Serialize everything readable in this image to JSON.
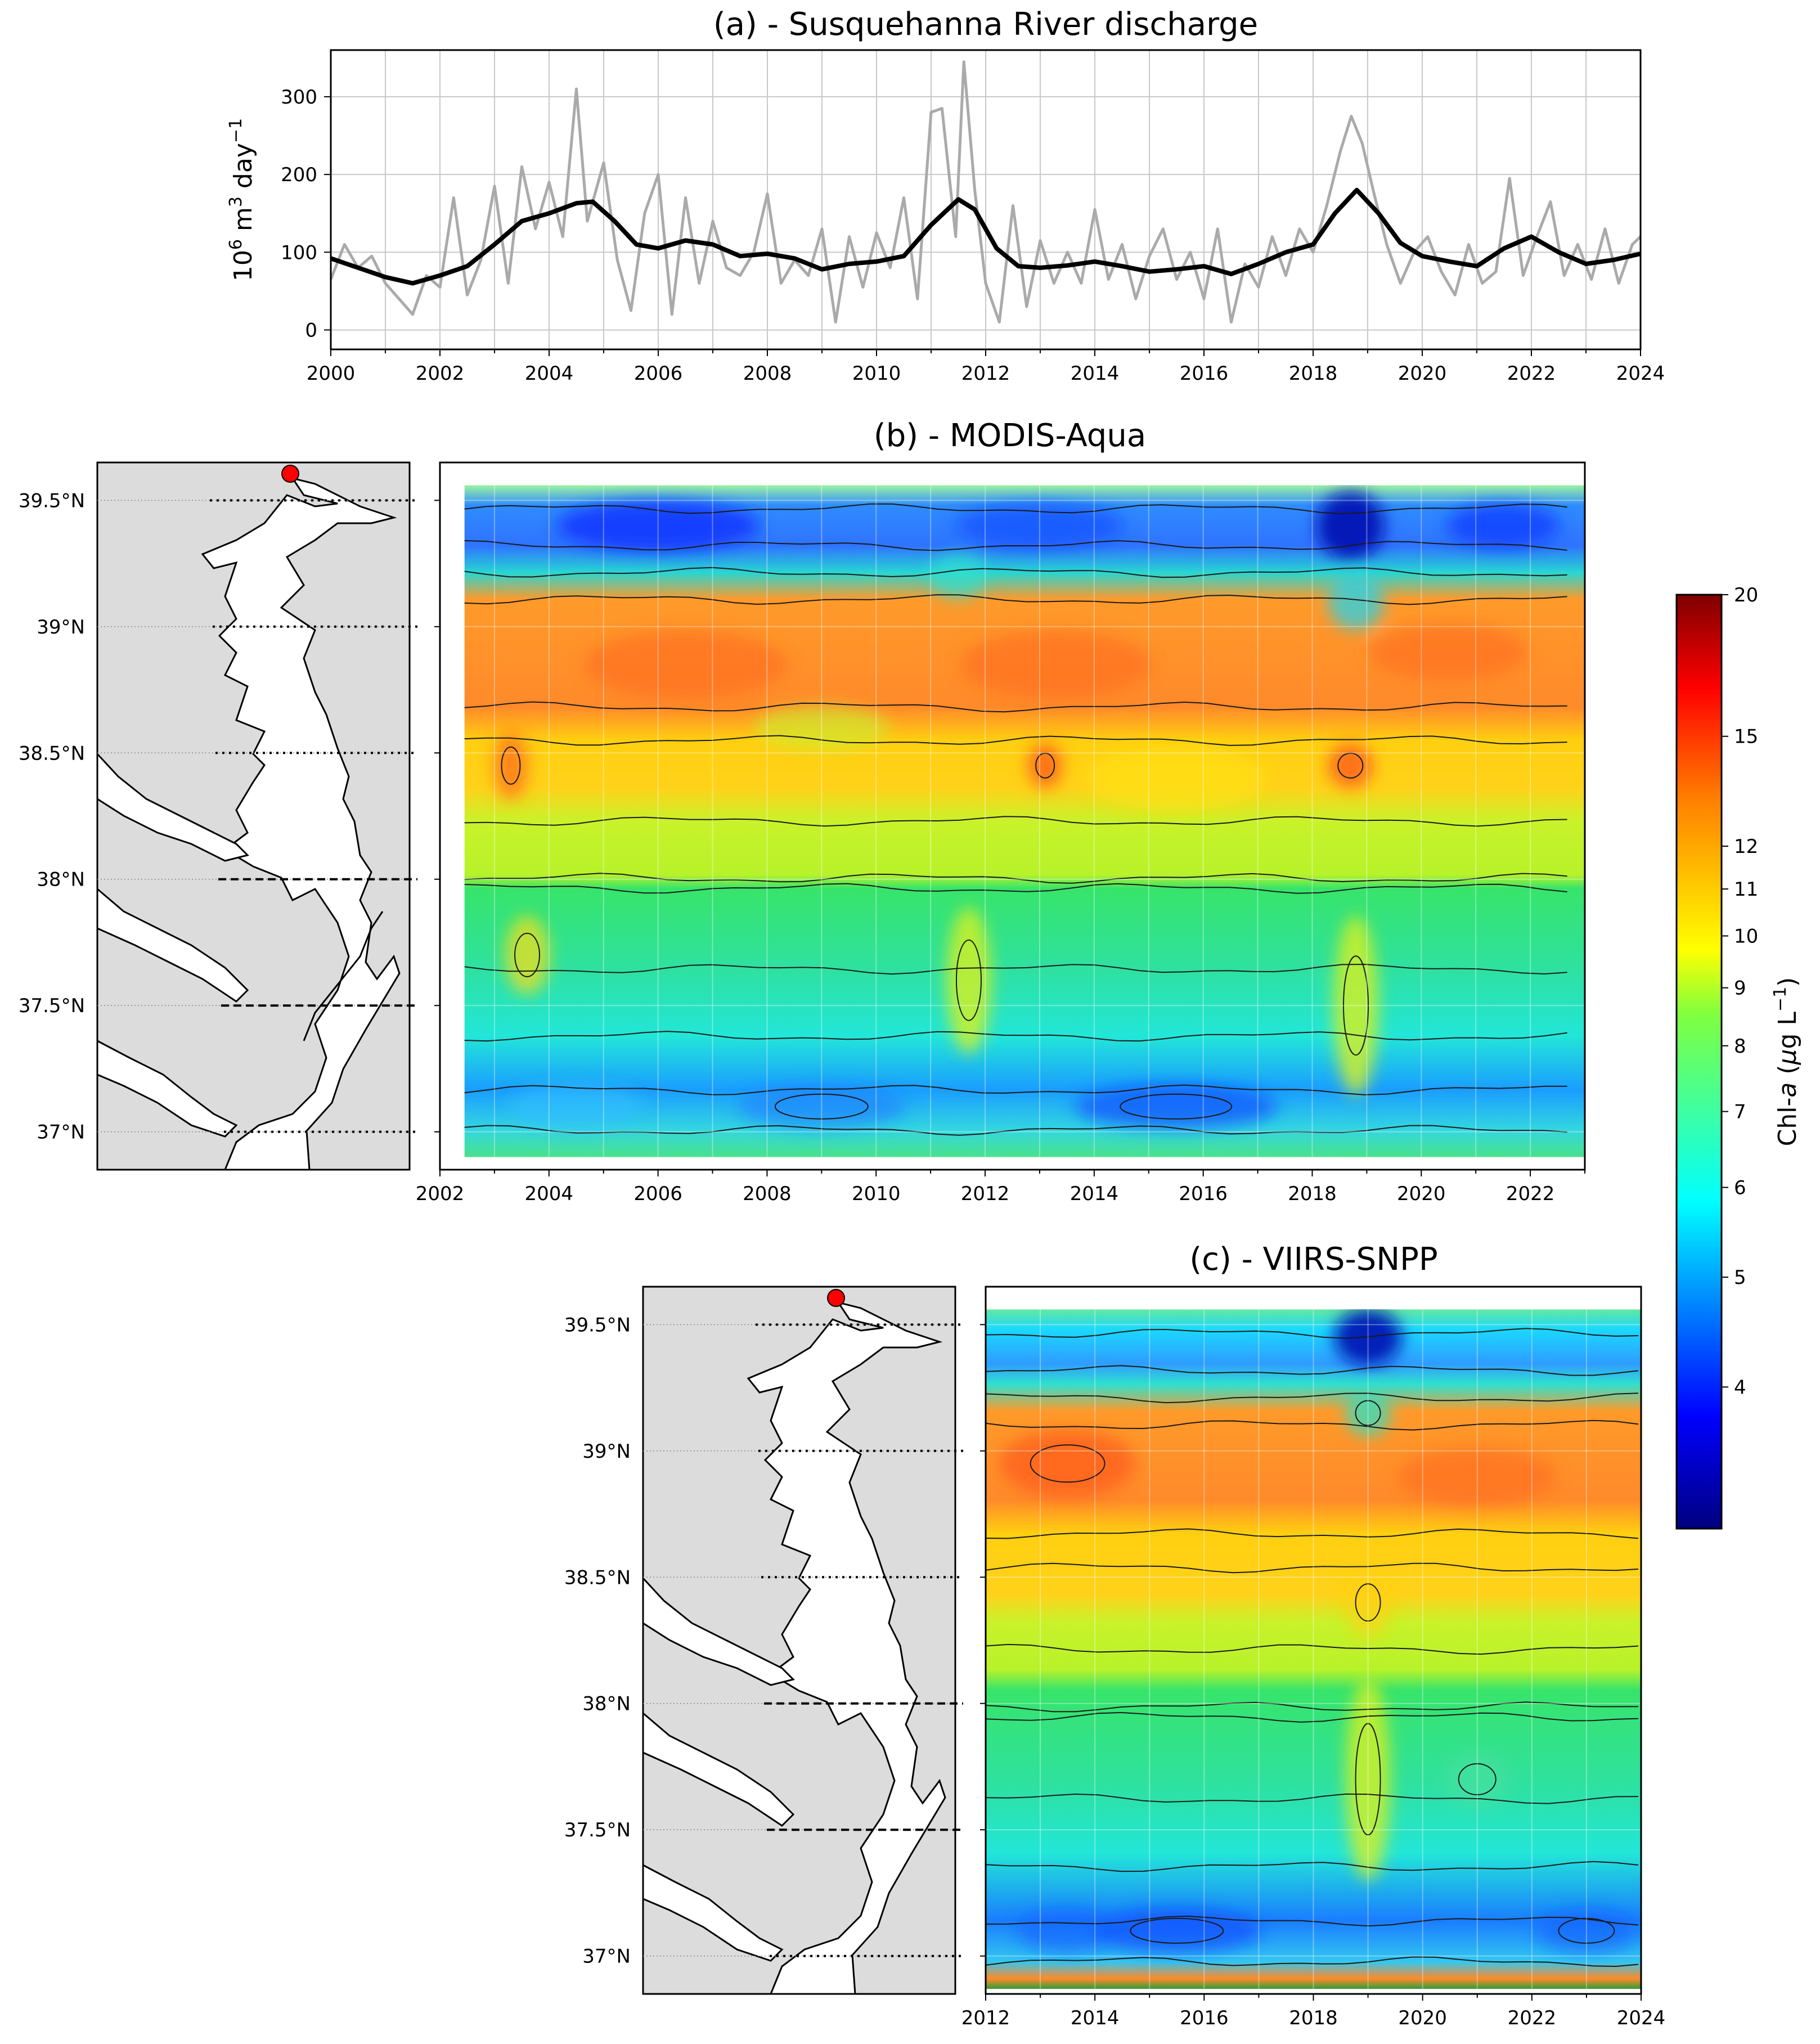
{
  "panels": {
    "a": {
      "title": "(a) - Susquehanna River discharge",
      "ylabel_base": "10",
      "ylabel_sup1": "6",
      "ylabel_mid": " m",
      "ylabel_sup2": "3",
      "ylabel_day": " day",
      "ylabel_sup3": "−1"
    },
    "b": {
      "title": "(b) - MODIS-Aqua"
    },
    "c": {
      "title": "(c) - VIIRS-SNPP"
    }
  },
  "colorbar": {
    "label_prefix": "Chl-",
    "label_italic": "a",
    "label_units_open": " (",
    "label_mu": "μ",
    "label_units_mid": "g L",
    "label_sup": "−1",
    "label_units_close": ")"
  },
  "chart_data": [
    {
      "type": "line",
      "title": "(a) - Susquehanna River discharge",
      "ylabel": "10^6 m^3 day^-1",
      "xlim": [
        2000,
        2024
      ],
      "ylim": [
        -25,
        360
      ],
      "x_ticks": [
        2000,
        2002,
        2004,
        2006,
        2008,
        2010,
        2012,
        2014,
        2016,
        2018,
        2020,
        2022,
        2024
      ],
      "y_ticks": [
        0,
        100,
        200,
        300
      ],
      "grid": true,
      "series": [
        {
          "color": "#aaaaaa",
          "x": [
            2000.0,
            2000.25,
            2000.5,
            2000.75,
            2001.0,
            2001.25,
            2001.5,
            2001.75,
            2002.0,
            2002.25,
            2002.5,
            2002.75,
            2003.0,
            2003.25,
            2003.5,
            2003.75,
            2004.0,
            2004.25,
            2004.5,
            2004.7,
            2005.0,
            2005.25,
            2005.5,
            2005.75,
            2006.0,
            2006.25,
            2006.5,
            2006.75,
            2007.0,
            2007.25,
            2007.5,
            2007.75,
            2008.0,
            2008.25,
            2008.5,
            2008.75,
            2009.0,
            2009.25,
            2009.5,
            2009.75,
            2010.0,
            2010.25,
            2010.5,
            2010.75,
            2011.0,
            2011.2,
            2011.45,
            2011.6,
            2011.8,
            2012.0,
            2012.25,
            2012.5,
            2012.75,
            2013.0,
            2013.25,
            2013.5,
            2013.75,
            2014.0,
            2014.25,
            2014.5,
            2014.75,
            2015.0,
            2015.25,
            2015.5,
            2015.75,
            2016.0,
            2016.25,
            2016.5,
            2016.75,
            2017.0,
            2017.25,
            2017.5,
            2017.75,
            2018.0,
            2018.25,
            2018.5,
            2018.7,
            2018.9,
            2019.1,
            2019.35,
            2019.6,
            2019.85,
            2020.1,
            2020.35,
            2020.6,
            2020.85,
            2021.1,
            2021.35,
            2021.6,
            2021.85,
            2022.1,
            2022.35,
            2022.6,
            2022.85,
            2023.1,
            2023.35,
            2023.6,
            2023.85,
            2024.0
          ],
          "y": [
            65,
            110,
            80,
            95,
            60,
            40,
            20,
            70,
            55,
            170,
            45,
            90,
            185,
            60,
            210,
            130,
            190,
            120,
            310,
            140,
            215,
            90,
            25,
            150,
            200,
            20,
            170,
            60,
            140,
            80,
            70,
            100,
            175,
            60,
            90,
            70,
            130,
            10,
            120,
            55,
            125,
            80,
            170,
            40,
            280,
            285,
            120,
            345,
            180,
            60,
            10,
            160,
            30,
            115,
            60,
            100,
            60,
            155,
            65,
            110,
            40,
            95,
            130,
            65,
            100,
            40,
            130,
            10,
            85,
            55,
            120,
            70,
            130,
            100,
            160,
            230,
            275,
            240,
            180,
            110,
            60,
            100,
            120,
            75,
            45,
            110,
            60,
            75,
            195,
            70,
            120,
            165,
            70,
            110,
            65,
            130,
            60,
            110,
            120
          ]
        },
        {
          "color": "#000000",
          "x": [
            2000.0,
            2000.5,
            2001.0,
            2001.5,
            2002.0,
            2002.5,
            2003.0,
            2003.5,
            2004.0,
            2004.5,
            2004.8,
            2005.2,
            2005.6,
            2006.0,
            2006.5,
            2007.0,
            2007.5,
            2008.0,
            2008.5,
            2009.0,
            2009.5,
            2010.0,
            2010.5,
            2011.0,
            2011.5,
            2011.8,
            2012.2,
            2012.6,
            2013.0,
            2013.5,
            2014.0,
            2014.5,
            2015.0,
            2015.5,
            2016.0,
            2016.5,
            2017.0,
            2017.5,
            2018.0,
            2018.4,
            2018.8,
            2019.2,
            2019.6,
            2020.0,
            2020.5,
            2021.0,
            2021.5,
            2022.0,
            2022.5,
            2023.0,
            2023.5,
            2024.0
          ],
          "y": [
            92,
            80,
            68,
            60,
            70,
            82,
            110,
            140,
            150,
            163,
            165,
            140,
            110,
            105,
            115,
            110,
            95,
            98,
            92,
            78,
            85,
            88,
            95,
            135,
            168,
            155,
            105,
            82,
            80,
            83,
            88,
            82,
            75,
            78,
            82,
            72,
            85,
            100,
            110,
            150,
            180,
            150,
            112,
            95,
            88,
            82,
            105,
            120,
            100,
            85,
            90,
            98
          ]
        }
      ]
    },
    {
      "type": "heatmap",
      "title": "(b) - MODIS-Aqua",
      "colorscale": "jet",
      "colorbar_label": "Chl-a (μg L^-1)",
      "xlim": [
        2002,
        2023
      ],
      "x_ticks": [
        2002,
        2004,
        2006,
        2008,
        2010,
        2012,
        2014,
        2016,
        2018,
        2020,
        2022
      ],
      "y_ticks": [
        "39.5°N",
        "39°N",
        "38.5°N",
        "38°N",
        "37.5°N",
        "37°N"
      ],
      "y_values": [
        39.5,
        39.0,
        38.5,
        38.0,
        37.5,
        37.0
      ],
      "ylim": [
        36.85,
        39.65
      ],
      "data_extent": {
        "x": [
          2002.45,
          2023
        ],
        "y": [
          36.9,
          39.56
        ]
      },
      "contours": true,
      "map_inset": true
    },
    {
      "type": "heatmap",
      "title": "(c) - VIIRS-SNPP",
      "colorscale": "jet",
      "colorbar_label": "Chl-a (μg L^-1)",
      "xlim": [
        2012,
        2024
      ],
      "x_ticks": [
        2012,
        2014,
        2016,
        2018,
        2020,
        2022,
        2024
      ],
      "y_ticks": [
        "39.5°N",
        "39°N",
        "38.5°N",
        "38°N",
        "37.5°N",
        "37°N"
      ],
      "y_values": [
        39.5,
        39.0,
        38.5,
        38.0,
        37.5,
        37.0
      ],
      "ylim": [
        36.85,
        39.65
      ],
      "data_extent": {
        "x": [
          2012,
          2024
        ],
        "y": [
          36.87,
          39.56
        ]
      },
      "contours": true,
      "map_inset": true
    },
    {
      "type": "colorbar",
      "scale": "log",
      "range": [
        3,
        20
      ],
      "ticks": [
        4,
        5,
        6,
        7,
        8,
        9,
        10,
        11,
        12,
        15,
        20
      ],
      "colors": [
        "#00007f",
        "#0000ff",
        "#007fff",
        "#00ffff",
        "#7fff7f",
        "#ffff00",
        "#ff7f00",
        "#ff0000",
        "#7f0000"
      ],
      "label": "Chl-a (μg L^-1)"
    }
  ]
}
